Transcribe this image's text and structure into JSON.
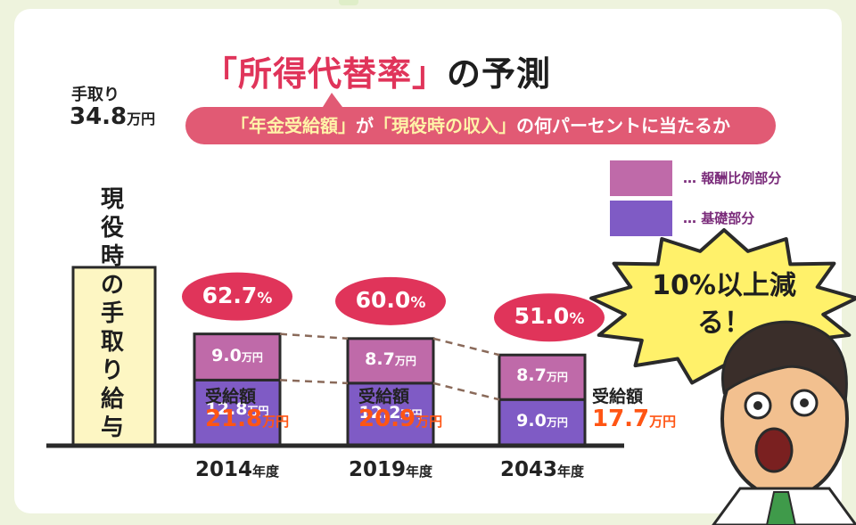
{
  "title_prefix": "「所得代替率」",
  "title_suffix": "の予測",
  "subtitle": {
    "part1": "「年金受給額」",
    "part2": "が",
    "part3": "「現役時の収入」",
    "part4": "の何パーセントに当たるか"
  },
  "takehome": {
    "label": "手取り",
    "value": "34.8",
    "unit": "万円",
    "bar_text": "現役時の手取り給与"
  },
  "legend": {
    "upper": "… 報酬比例部分",
    "lower": "… 基礎部分"
  },
  "callout": "10%以上減る！",
  "unit": "万円",
  "receive_label": "受給額",
  "colors": {
    "upper_segment": "#bf6aa9",
    "lower_segment": "#7f5bc5",
    "takehome_bar": "#fdf6c3",
    "ratio_bubble": "#e0345a",
    "accent_value": "#ff5514"
  },
  "chart_data": {
    "type": "bar",
    "stacked": true,
    "reference_bar": {
      "name": "現役時の手取り給与",
      "value": 34.8
    },
    "categories": [
      "2014",
      "2019",
      "2043"
    ],
    "category_unit": "年度",
    "series": [
      {
        "name": "基礎部分",
        "values": [
          12.8,
          12.2,
          9.0
        ]
      },
      {
        "name": "報酬比例部分",
        "values": [
          9.0,
          8.7,
          8.7
        ]
      }
    ],
    "totals": [
      21.8,
      20.9,
      17.7
    ],
    "ratio_labels": [
      "62.7",
      "60.0",
      "51.0"
    ],
    "value_labels_upper": [
      "9.0",
      "8.7",
      "8.7"
    ],
    "value_labels_lower": [
      "12.8",
      "12.2",
      "9.0"
    ],
    "total_labels": [
      "21.8",
      "20.9",
      "17.7"
    ]
  }
}
